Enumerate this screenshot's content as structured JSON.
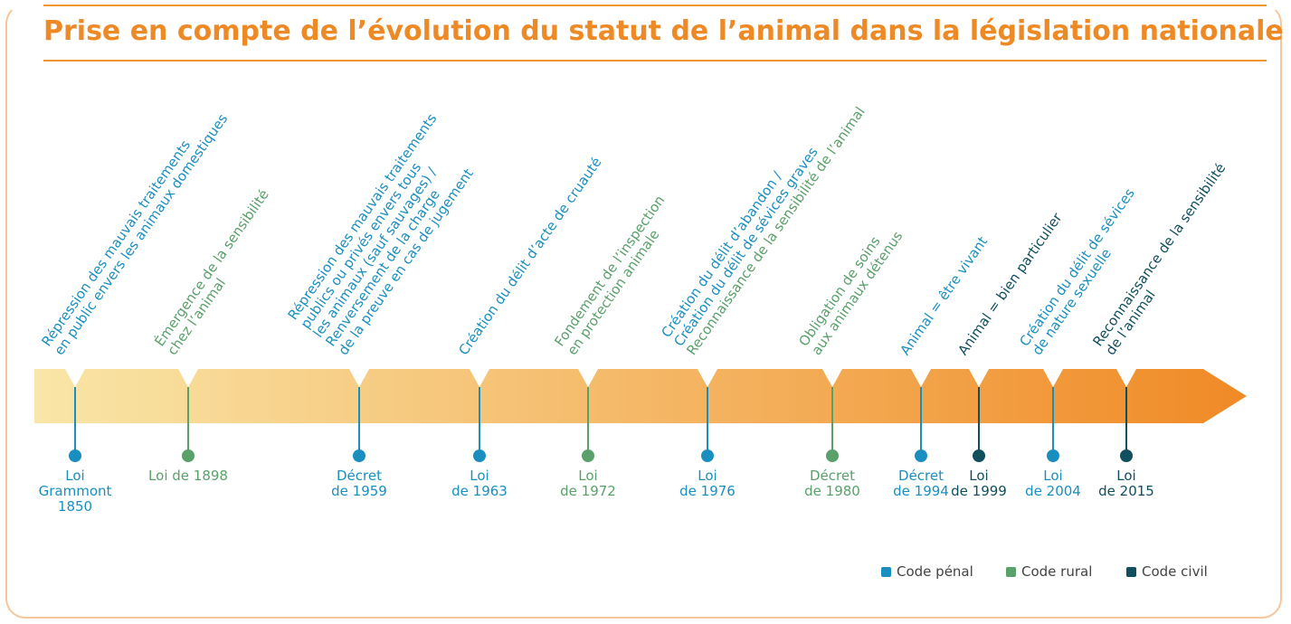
{
  "title": "Prise en compte de l’évolution du statut de l’animal dans la législation nationale",
  "colors": {
    "penal": "#1a8fbf",
    "rural": "#5aa06a",
    "civil": "#0f4f5e",
    "accent": "#ee8a25",
    "arrow_start": "#f9e6a8",
    "arrow_end": "#f08a26"
  },
  "events": [
    {
      "code": "penal",
      "lines": [
        "Répression des mauvais traitements",
        "en public envers les animaux domestiques"
      ],
      "date": [
        "Loi",
        "Grammont",
        "1850"
      ]
    },
    {
      "code": "rural",
      "lines": [
        "Émergence de la sensibilité",
        "chez l’animal"
      ],
      "date": [
        "Loi de 1898"
      ]
    },
    {
      "code": "penal",
      "lines": [
        "Répression des mauvais traitements",
        "publics ou privés envers tous",
        "les animaux (sauf sauvages) /",
        "Renversement de la charge",
        "de la preuve en cas de jugement"
      ],
      "date": [
        "Décret",
        "de 1959"
      ]
    },
    {
      "code": "penal",
      "lines": [
        "Création du délit d’acte de cruauté"
      ],
      "date": [
        "Loi",
        "de 1963"
      ]
    },
    {
      "code": "rural",
      "lines": [
        "Fondement de l’inspection",
        "en protection animale"
      ],
      "date": [
        "Loi",
        "de 1972"
      ]
    },
    {
      "code": "penal",
      "lines": [
        "Création du délit d’abandon /",
        "Création du délit de sévices graves",
        "Reconnaissance de la sensibilité de l’animal"
      ],
      "line_codes": [
        "penal",
        "penal",
        "rural"
      ],
      "date": [
        "Loi",
        "de 1976"
      ]
    },
    {
      "code": "rural",
      "lines": [
        "Obligation de soins",
        "aux animaux détenus"
      ],
      "date": [
        "Décret",
        "de 1980"
      ]
    },
    {
      "code": "penal",
      "lines": [
        "Animal = être vivant"
      ],
      "date": [
        "Décret",
        "de 1994"
      ]
    },
    {
      "code": "civil",
      "lines": [
        "Animal = bien particulier"
      ],
      "date": [
        "Loi",
        "de 1999"
      ]
    },
    {
      "code": "penal",
      "lines": [
        "Création du délit de sévices",
        "de nature sexuelle"
      ],
      "date": [
        "Loi",
        "de 2004"
      ]
    },
    {
      "code": "civil",
      "lines": [
        "Reconnaissance de la sensibilité",
        "de l’animal"
      ],
      "date": [
        "Loi",
        "de 2015"
      ]
    }
  ],
  "legend": [
    {
      "code": "penal",
      "label": "Code pénal"
    },
    {
      "code": "rural",
      "label": "Code rural"
    },
    {
      "code": "civil",
      "label": "Code civil"
    }
  ]
}
